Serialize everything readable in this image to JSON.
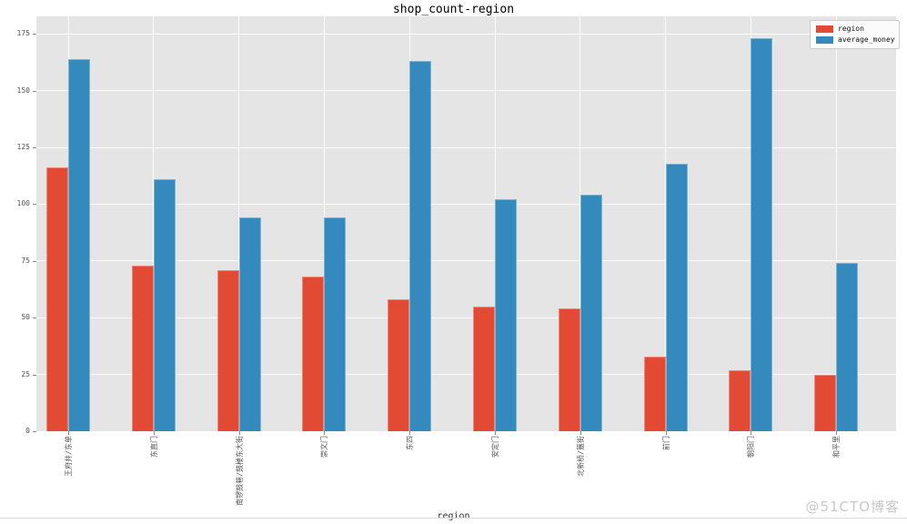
{
  "page": {
    "watermark": "@51CTO博客"
  },
  "chart_data": {
    "type": "bar",
    "title": "shop_count-region",
    "xlabel": "region",
    "ylabel": "",
    "categories": [
      "王府井/东单",
      "东直门",
      "南锣鼓巷/鼓楼东大街",
      "崇文门",
      "东四",
      "安定门",
      "北新桥/簋街",
      "前门",
      "朝阳门",
      "和平里"
    ],
    "series": [
      {
        "name": "region",
        "color": "#E24A33",
        "values": [
          116,
          73,
          71,
          68,
          58,
          55,
          54,
          33,
          27,
          25
        ]
      },
      {
        "name": "average_money",
        "color": "#348ABD",
        "values": [
          164,
          111,
          94,
          94,
          163,
          102,
          104,
          118,
          173,
          74
        ]
      }
    ],
    "yticks": [
      0,
      25,
      50,
      75,
      100,
      125,
      150,
      175
    ],
    "ylim": [
      0,
      182.7
    ],
    "grid": true,
    "legend_position": "upper right",
    "plot_background": "#E5E5E5",
    "grid_color": "#FFFFFF"
  }
}
